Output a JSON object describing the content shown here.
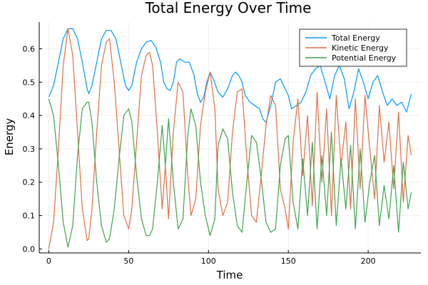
{
  "chart_data": {
    "type": "line",
    "title": "Total Energy Over Time",
    "xlabel": "Time",
    "ylabel": "Energy",
    "xlim": [
      -6,
      233
    ],
    "ylim": [
      -0.012,
      0.68
    ],
    "xticks": [
      0,
      50,
      100,
      150,
      200
    ],
    "xtick_labels": [
      "0",
      "50",
      "100",
      "150",
      "200"
    ],
    "yticks": [
      0.0,
      0.1,
      0.2,
      0.3,
      0.4,
      0.5,
      0.6
    ],
    "ytick_labels": [
      "0.0",
      "0.1",
      "0.2",
      "0.3",
      "0.4",
      "0.5",
      "0.6"
    ],
    "grid": true,
    "legend_position": "top-right",
    "series": [
      {
        "name": "Total Energy",
        "color": "#009AFA",
        "x": [
          0,
          3,
          6,
          9,
          12,
          15,
          18,
          21,
          24,
          25,
          27,
          30,
          33,
          36,
          39,
          42,
          45,
          48,
          50,
          52,
          55,
          58,
          61,
          64,
          67,
          70,
          72,
          74,
          76,
          78,
          80,
          82,
          85,
          88,
          91,
          93,
          95,
          97,
          99,
          101,
          103,
          106,
          109,
          112,
          115,
          117,
          119,
          121,
          123,
          126,
          129,
          132,
          134,
          136,
          139,
          142,
          145,
          148,
          150,
          152,
          155,
          158,
          161,
          164,
          167,
          170,
          173,
          176,
          179,
          182,
          185,
          188,
          191,
          194,
          197,
          200,
          203,
          206,
          209,
          212,
          215,
          218,
          221,
          224,
          227
        ],
        "y": [
          0.455,
          0.49,
          0.56,
          0.63,
          0.66,
          0.66,
          0.63,
          0.56,
          0.48,
          0.465,
          0.49,
          0.56,
          0.63,
          0.655,
          0.655,
          0.63,
          0.56,
          0.49,
          0.475,
          0.49,
          0.56,
          0.6,
          0.62,
          0.625,
          0.605,
          0.56,
          0.5,
          0.48,
          0.475,
          0.5,
          0.56,
          0.57,
          0.56,
          0.56,
          0.52,
          0.465,
          0.44,
          0.455,
          0.5,
          0.53,
          0.51,
          0.47,
          0.455,
          0.48,
          0.52,
          0.53,
          0.52,
          0.5,
          0.46,
          0.44,
          0.43,
          0.42,
          0.39,
          0.38,
          0.43,
          0.5,
          0.51,
          0.48,
          0.46,
          0.42,
          0.43,
          0.44,
          0.47,
          0.52,
          0.54,
          0.55,
          0.5,
          0.45,
          0.52,
          0.55,
          0.51,
          0.42,
          0.47,
          0.54,
          0.5,
          0.45,
          0.5,
          0.52,
          0.47,
          0.43,
          0.45,
          0.43,
          0.44,
          0.41,
          0.465
        ]
      },
      {
        "name": "Kinetic Energy",
        "color": "#E26F46",
        "x": [
          0,
          3,
          6,
          9,
          12,
          15,
          18,
          21,
          24,
          25,
          27,
          30,
          33,
          36,
          38,
          41,
          44,
          47,
          50,
          52,
          55,
          58,
          61,
          63,
          65,
          68,
          71,
          73,
          75,
          78,
          81,
          84,
          87,
          89,
          92,
          95,
          98,
          101,
          104,
          106,
          109,
          112,
          115,
          118,
          121,
          124,
          127,
          130,
          133,
          136,
          139,
          142,
          145,
          148,
          150,
          153,
          156,
          159,
          162,
          165,
          168,
          171,
          174,
          177,
          180,
          183,
          186,
          189,
          192,
          195,
          198,
          201,
          204,
          207,
          210,
          213,
          216,
          219,
          222,
          225,
          227
        ],
        "y": [
          0.0,
          0.08,
          0.3,
          0.55,
          0.66,
          0.58,
          0.35,
          0.12,
          0.025,
          0.03,
          0.12,
          0.35,
          0.55,
          0.62,
          0.63,
          0.5,
          0.3,
          0.1,
          0.06,
          0.12,
          0.32,
          0.52,
          0.58,
          0.59,
          0.55,
          0.35,
          0.12,
          0.25,
          0.09,
          0.35,
          0.5,
          0.47,
          0.22,
          0.1,
          0.15,
          0.37,
          0.47,
          0.53,
          0.42,
          0.18,
          0.1,
          0.14,
          0.35,
          0.47,
          0.48,
          0.27,
          0.1,
          0.08,
          0.22,
          0.37,
          0.46,
          0.43,
          0.18,
          0.12,
          0.06,
          0.32,
          0.45,
          0.22,
          0.4,
          0.13,
          0.47,
          0.2,
          0.42,
          0.1,
          0.46,
          0.25,
          0.38,
          0.12,
          0.45,
          0.18,
          0.46,
          0.3,
          0.15,
          0.43,
          0.26,
          0.38,
          0.18,
          0.41,
          0.14,
          0.34,
          0.28
        ]
      },
      {
        "name": "Potential Energy",
        "color": "#3EA44E",
        "x": [
          0,
          3,
          6,
          9,
          12,
          15,
          18,
          21,
          24,
          25,
          27,
          30,
          33,
          36,
          38,
          41,
          44,
          47,
          50,
          52,
          55,
          58,
          61,
          63,
          65,
          68,
          71,
          73,
          75,
          78,
          81,
          84,
          87,
          89,
          92,
          95,
          98,
          101,
          104,
          106,
          109,
          112,
          115,
          118,
          121,
          124,
          127,
          130,
          133,
          136,
          139,
          142,
          145,
          148,
          150,
          153,
          156,
          159,
          162,
          165,
          168,
          171,
          174,
          177,
          180,
          183,
          186,
          189,
          192,
          195,
          198,
          201,
          204,
          207,
          210,
          213,
          216,
          219,
          222,
          225,
          227
        ],
        "y": [
          0.45,
          0.4,
          0.25,
          0.08,
          0.005,
          0.07,
          0.28,
          0.42,
          0.44,
          0.44,
          0.38,
          0.2,
          0.07,
          0.02,
          0.03,
          0.12,
          0.27,
          0.4,
          0.42,
          0.38,
          0.22,
          0.09,
          0.04,
          0.04,
          0.06,
          0.2,
          0.37,
          0.25,
          0.39,
          0.2,
          0.06,
          0.09,
          0.34,
          0.42,
          0.37,
          0.2,
          0.1,
          0.04,
          0.09,
          0.31,
          0.36,
          0.33,
          0.17,
          0.07,
          0.05,
          0.2,
          0.34,
          0.32,
          0.21,
          0.08,
          0.05,
          0.06,
          0.25,
          0.33,
          0.34,
          0.14,
          0.06,
          0.27,
          0.1,
          0.32,
          0.06,
          0.28,
          0.1,
          0.35,
          0.07,
          0.27,
          0.12,
          0.31,
          0.06,
          0.3,
          0.08,
          0.2,
          0.28,
          0.07,
          0.19,
          0.09,
          0.25,
          0.05,
          0.26,
          0.12,
          0.17
        ]
      }
    ]
  }
}
